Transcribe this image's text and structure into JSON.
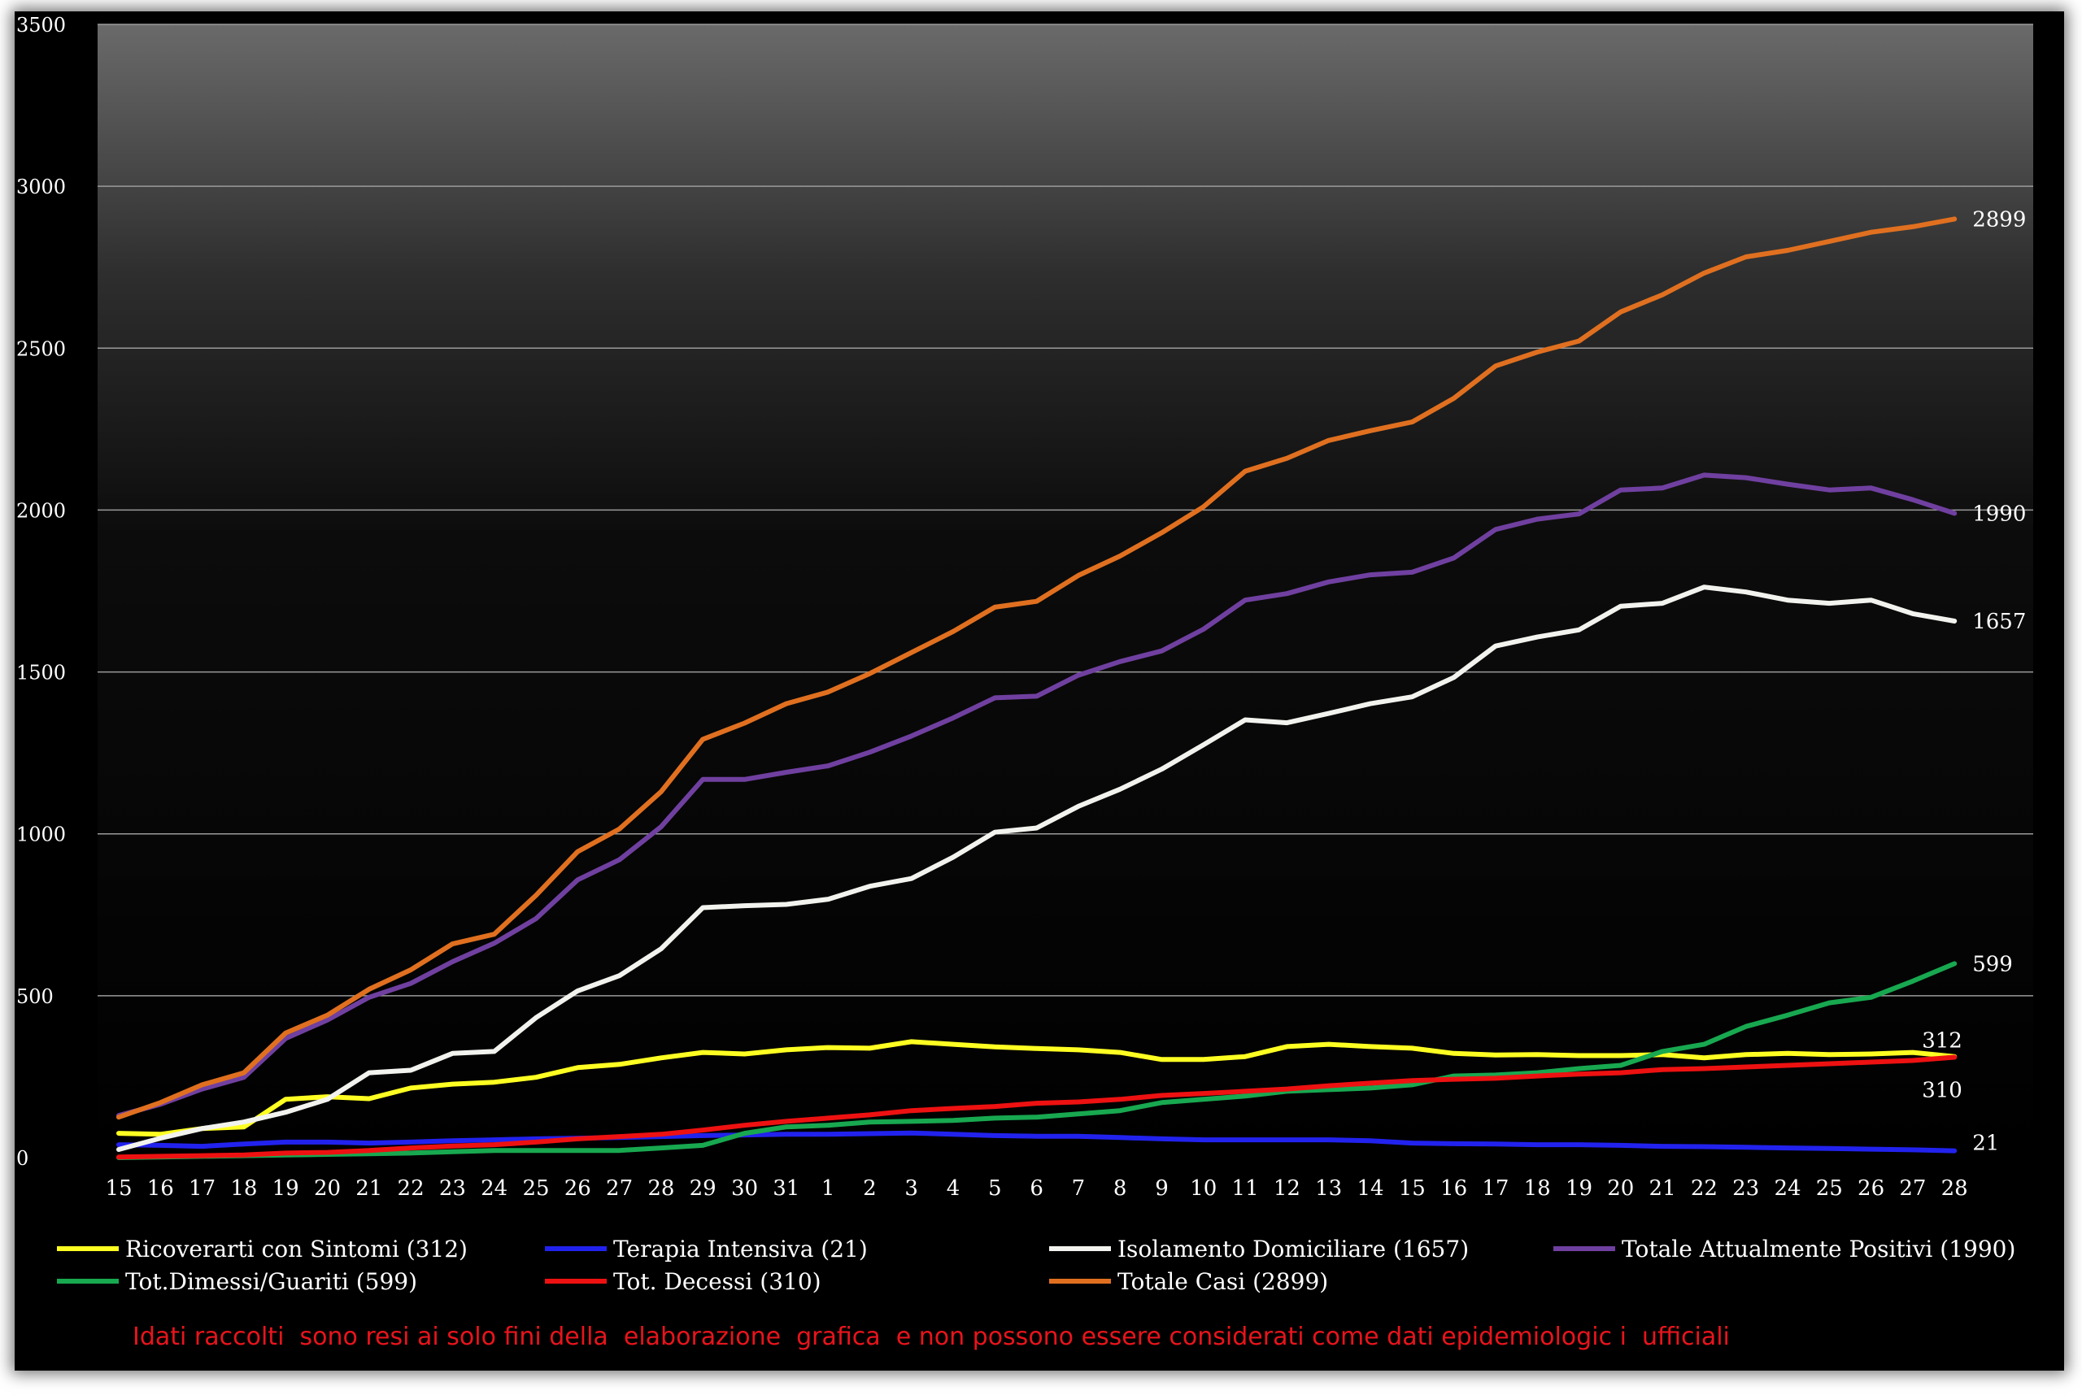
{
  "chart_data": {
    "type": "line",
    "title": "",
    "xlabel": "",
    "ylabel": "",
    "ylim": [
      0,
      3500
    ],
    "yticks": [
      0,
      500,
      1000,
      1500,
      2000,
      2500,
      3000,
      3500
    ],
    "grid": true,
    "legend_position": "bottom",
    "categories": [
      "15",
      "16",
      "17",
      "18",
      "19",
      "20",
      "21",
      "22",
      "23",
      "24",
      "25",
      "26",
      "27",
      "28",
      "29",
      "30",
      "31",
      "1",
      "2",
      "3",
      "4",
      "5",
      "6",
      "7",
      "8",
      "9",
      "10",
      "11",
      "12",
      "13",
      "14",
      "15",
      "16",
      "17",
      "18",
      "19",
      "20",
      "21",
      "22",
      "23",
      "24",
      "25",
      "26",
      "27",
      "28"
    ],
    "series": [
      {
        "name": "Ricoverarti con Sintomi (312)",
        "color": "#ffff22",
        "end_label": "312",
        "values": [
          75,
          72,
          90,
          95,
          180,
          188,
          182,
          215,
          227,
          233,
          248,
          278,
          288,
          308,
          325,
          320,
          333,
          340,
          338,
          358,
          350,
          342,
          337,
          333,
          325,
          303,
          303,
          312,
          343,
          350,
          343,
          338,
          322,
          317,
          318,
          315,
          315,
          318,
          308,
          318,
          322,
          318,
          320,
          325,
          312
        ]
      },
      {
        "name": "Terapia Intensiva (21)",
        "color": "#2222ee",
        "end_label": "21",
        "values": [
          40,
          38,
          35,
          42,
          48,
          48,
          45,
          48,
          52,
          55,
          58,
          60,
          62,
          65,
          68,
          70,
          72,
          72,
          74,
          76,
          72,
          68,
          66,
          66,
          62,
          58,
          55,
          55,
          55,
          55,
          52,
          45,
          43,
          42,
          40,
          40,
          38,
          35,
          34,
          32,
          30,
          28,
          26,
          24,
          21
        ]
      },
      {
        "name": "Isolamento Domiciliare (1657)",
        "color": "#f2f2ee",
        "end_label": "1657",
        "values": [
          25,
          60,
          90,
          110,
          140,
          180,
          262,
          270,
          322,
          328,
          432,
          515,
          562,
          645,
          772,
          778,
          782,
          798,
          838,
          862,
          928,
          1005,
          1018,
          1085,
          1138,
          1200,
          1275,
          1352,
          1343,
          1372,
          1402,
          1423,
          1483,
          1580,
          1608,
          1630,
          1703,
          1712,
          1762,
          1747,
          1722,
          1712,
          1722,
          1680,
          1657
        ]
      },
      {
        "name": "Totale Attualmente Positivi (1990)",
        "color": "#7040a0",
        "end_label": "1990",
        "values": [
          130,
          165,
          212,
          248,
          368,
          425,
          495,
          538,
          605,
          662,
          738,
          858,
          920,
          1022,
          1168,
          1168,
          1190,
          1210,
          1252,
          1302,
          1358,
          1420,
          1425,
          1490,
          1532,
          1565,
          1632,
          1722,
          1742,
          1778,
          1800,
          1808,
          1852,
          1940,
          1972,
          1988,
          2062,
          2068,
          2108,
          2100,
          2080,
          2062,
          2068,
          2032,
          1990
        ]
      },
      {
        "name": "Tot.Dimessi/Guariti (599)",
        "color": "#18a850",
        "end_label": "599",
        "values": [
          0,
          2,
          4,
          6,
          8,
          10,
          12,
          14,
          18,
          22,
          22,
          22,
          22,
          30,
          38,
          75,
          95,
          100,
          110,
          112,
          115,
          122,
          125,
          135,
          145,
          170,
          180,
          190,
          205,
          210,
          215,
          225,
          252,
          255,
          262,
          275,
          285,
          328,
          350,
          405,
          440,
          478,
          495,
          545,
          599
        ]
      },
      {
        "name": "Tot. Decessi (310)",
        "color": "#ee1111",
        "end_label": "310",
        "values": [
          2,
          4,
          6,
          8,
          14,
          16,
          22,
          30,
          36,
          40,
          48,
          58,
          65,
          72,
          85,
          100,
          112,
          122,
          132,
          145,
          152,
          158,
          168,
          172,
          180,
          192,
          198,
          205,
          212,
          222,
          230,
          238,
          242,
          245,
          252,
          258,
          262,
          272,
          275,
          280,
          285,
          290,
          295,
          300,
          310
        ]
      },
      {
        "name": "Totale Casi (2899)",
        "color": "#e07020",
        "end_label": "2899",
        "values": [
          125,
          170,
          225,
          262,
          385,
          440,
          520,
          580,
          660,
          690,
          810,
          945,
          1015,
          1130,
          1292,
          1342,
          1402,
          1438,
          1495,
          1560,
          1625,
          1700,
          1718,
          1798,
          1858,
          1930,
          2010,
          2120,
          2160,
          2215,
          2245,
          2272,
          2345,
          2445,
          2488,
          2522,
          2612,
          2665,
          2732,
          2782,
          2802,
          2830,
          2858,
          2875,
          2899
        ]
      }
    ]
  },
  "footer": {
    "disclaimer": "Idati raccolti  sono resi ai solo fini della  elaborazione  grafica  e non possono essere considerati come dati epidemiologic i  ufficiali"
  }
}
